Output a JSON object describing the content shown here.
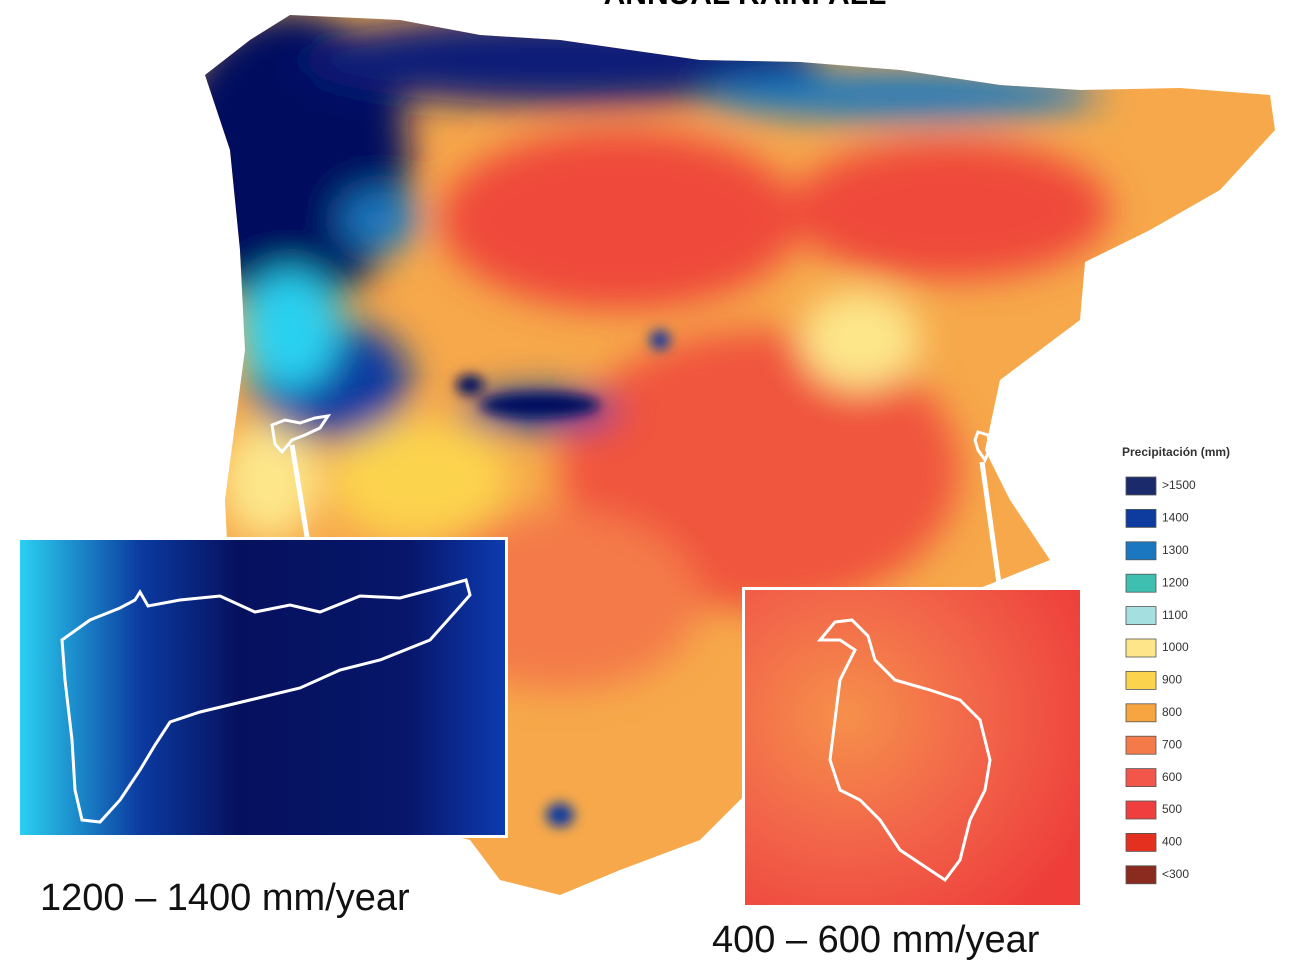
{
  "title": "ANNUAL RAINFALL",
  "legend": {
    "title": "Precipitación (mm)",
    "items": [
      {
        "label": ">1500",
        "color": "#1b2a6b"
      },
      {
        "label": "1400",
        "color": "#0d3b9e"
      },
      {
        "label": "1300",
        "color": "#1b78c0"
      },
      {
        "label": "1200",
        "color": "#3fbfb0"
      },
      {
        "label": "1100",
        "color": "#a6dfe0"
      },
      {
        "label": "1000",
        "color": "#fde68a"
      },
      {
        "label": "900",
        "color": "#fcd34d"
      },
      {
        "label": "800",
        "color": "#f7a541"
      },
      {
        "label": "700",
        "color": "#f47a4a"
      },
      {
        "label": "600",
        "color": "#f2554a"
      },
      {
        "label": "500",
        "color": "#ef3e3e"
      },
      {
        "label": "400",
        "color": "#e3301f"
      },
      {
        "label": "<300",
        "color": "#8b2a1e"
      }
    ]
  },
  "insets": [
    {
      "label": "1200 – 1400 mm/year"
    },
    {
      "label": "400 – 600 mm/year"
    }
  ]
}
